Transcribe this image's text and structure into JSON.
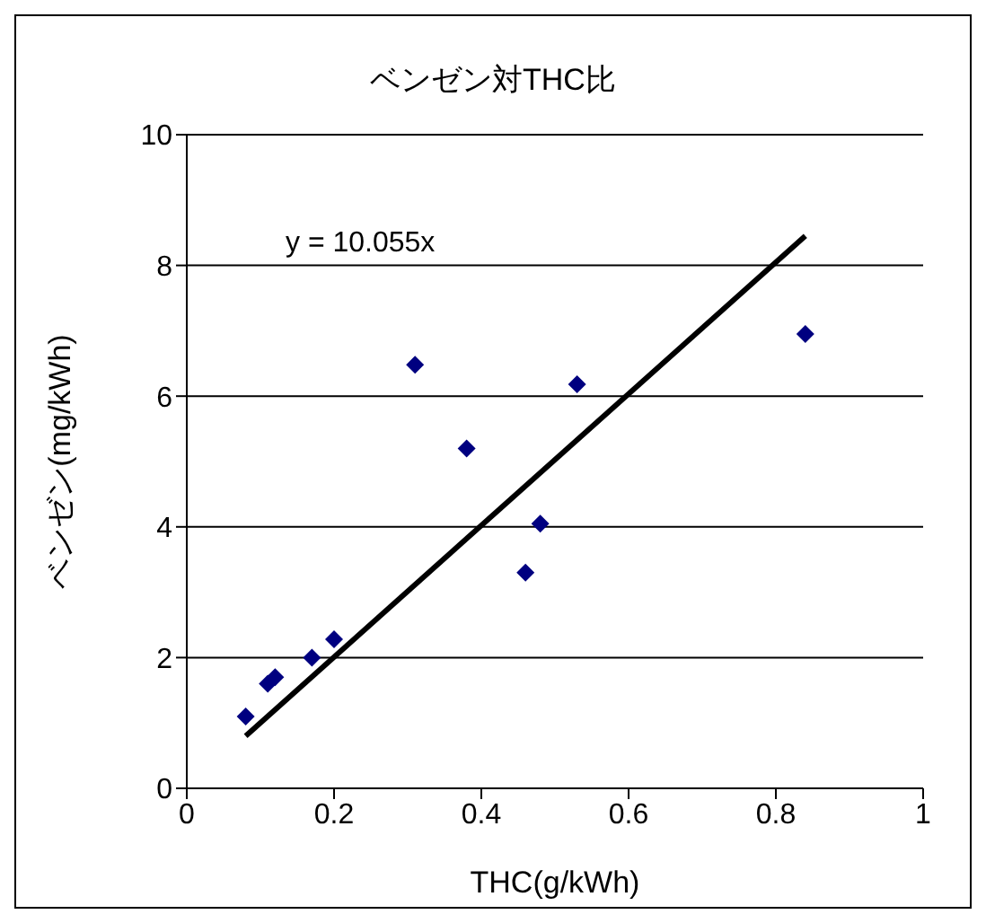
{
  "chart_data": {
    "type": "scatter",
    "title": "ベンゼン対THC比",
    "xlabel": "THC(g/kWh)",
    "ylabel": "ベンゼン(mg/kWh)",
    "series": [
      {
        "color": "#000080",
        "marker": "diamond",
        "x": [
          0.08,
          0.11,
          0.12,
          0.17,
          0.2,
          0.31,
          0.38,
          0.46,
          0.48,
          0.53,
          0.84
        ],
        "values": [
          1.1,
          1.6,
          1.7,
          2.0,
          2.28,
          6.48,
          5.2,
          3.3,
          4.05,
          6.18,
          6.95
        ]
      },
      {
        "type": "line",
        "color": "#000000",
        "marker": "none",
        "x": [
          0.08,
          0.84
        ],
        "values": [
          0.8,
          8.45
        ]
      }
    ],
    "annotations": [
      "y = 10.055x"
    ],
    "xlim": [
      0,
      1
    ],
    "xticks": [
      0,
      0.2,
      0.4,
      0.6,
      0.8,
      1
    ],
    "ylim": [
      0,
      10
    ],
    "yticks": [
      0,
      2,
      4,
      6,
      8,
      10
    ],
    "grid": "y",
    "legend": false
  }
}
